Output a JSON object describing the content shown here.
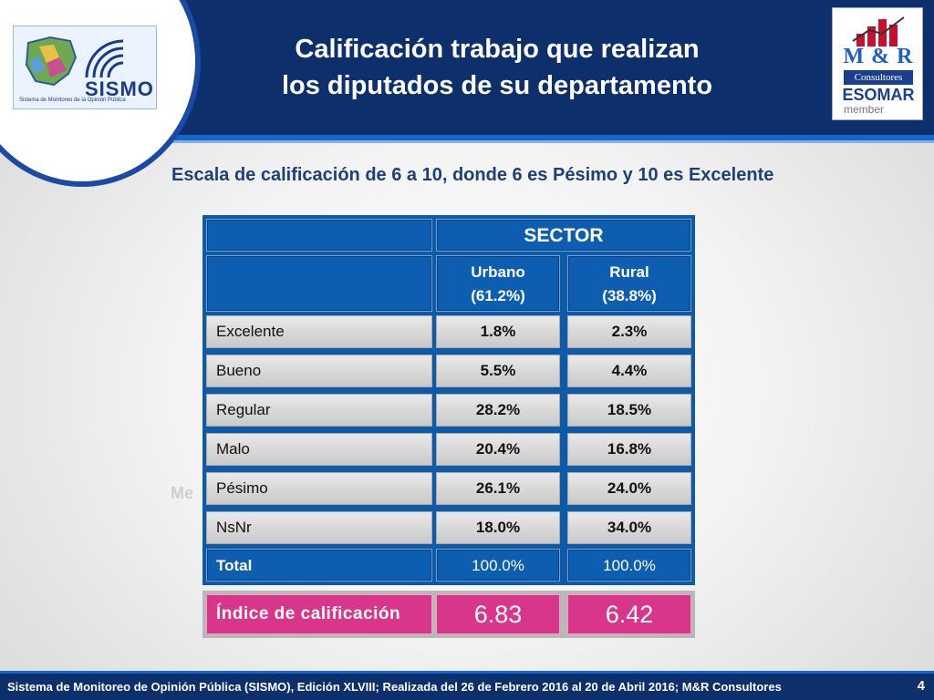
{
  "header": {
    "title_line1": "Calificación trabajo que realizan",
    "title_line2": "los diputados de su departamento",
    "left_logo": {
      "name": "SISMO",
      "tagline": "Sistema de Monitoreo de la Opinión Pública"
    },
    "right_logo": {
      "letters": "M & R",
      "consult": "Consultores",
      "esomar": "ESOMAR",
      "member": "member"
    }
  },
  "subtitle": "Escala de calificación de 6 a 10, donde 6 es Pésimo y 10 es Excelente",
  "table": {
    "group_header": "SECTOR",
    "columns": [
      {
        "name": "Urbano",
        "share": "(61.2%)"
      },
      {
        "name": "Rural",
        "share": "(38.8%)"
      }
    ],
    "rows": [
      {
        "label": "Excelente",
        "values": [
          "1.8%",
          "2.3%"
        ]
      },
      {
        "label": "Bueno",
        "values": [
          "5.5%",
          "4.4%"
        ]
      },
      {
        "label": "Regular",
        "values": [
          "28.2%",
          "18.5%"
        ]
      },
      {
        "label": "Malo",
        "values": [
          "20.4%",
          "16.8%"
        ]
      },
      {
        "label": "Pésimo",
        "values": [
          "26.1%",
          "24.0%"
        ]
      },
      {
        "label": "NsNr",
        "values": [
          "18.0%",
          "34.0%"
        ]
      }
    ],
    "total": {
      "label": "Total",
      "values": [
        "100.0%",
        "100.0%"
      ]
    },
    "index": {
      "label": "Índice de calificación",
      "values": [
        "6.83",
        "6.42"
      ]
    }
  },
  "ghost_text": "Me",
  "footer": {
    "text": "Sistema de Monitoreo de Opinión Pública (SISMO), Edición XLVIII; Realizada del  26 de Febrero 2016 al 20 de Abril 2016; M&R Consultores",
    "page_number": "4"
  },
  "colors": {
    "header": "#0d2f6b",
    "accent": "#1665c9",
    "table_blue": "#0d5eb0",
    "index_pink": "#d9358a"
  }
}
